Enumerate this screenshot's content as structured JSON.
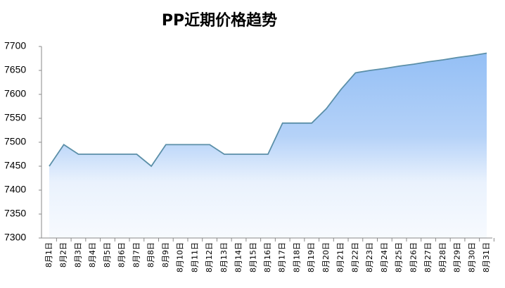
{
  "chart_data": {
    "type": "area",
    "title": "PP近期价格趋势",
    "categories": [
      "8月1日",
      "8月2日",
      "8月3日",
      "8月4日",
      "8月5日",
      "8月6日",
      "8月7日",
      "8月8日",
      "8月9日",
      "8月10日",
      "8月11日",
      "8月12日",
      "8月13日",
      "8月14日",
      "8月15日",
      "8月16日",
      "8月17日",
      "8月18日",
      "8月19日",
      "8月20日",
      "8月21日",
      "8月22日",
      "8月23日",
      "8月24日",
      "8月25日",
      "8月26日",
      "8月27日",
      "8月28日",
      "8月29日",
      "8月30日",
      "8月31日"
    ],
    "values": [
      7450,
      7495,
      7475,
      7475,
      7475,
      7475,
      7475,
      7450,
      7495,
      7495,
      7495,
      7495,
      7475,
      7475,
      7475,
      7475,
      7540,
      7540,
      7540,
      7570,
      7610,
      7645,
      7650,
      7654,
      7659,
      7663,
      7668,
      7672,
      7677,
      7681,
      7686
    ],
    "color": "#5b8fa8",
    "ylim": [
      7300,
      7700
    ],
    "yticks": [
      7300,
      7350,
      7400,
      7450,
      7500,
      7550,
      7600,
      7650,
      7700
    ]
  }
}
